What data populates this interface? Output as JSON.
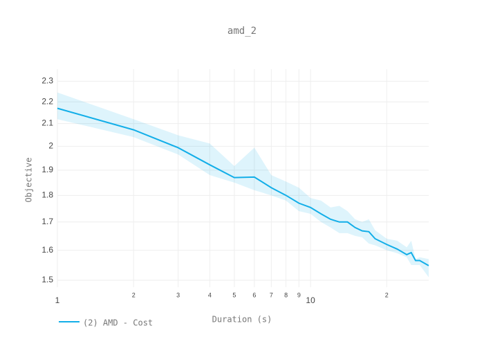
{
  "chart_data": {
    "type": "line",
    "title": "amd_2",
    "x_label": "Duration (s)",
    "y_label": "Objective",
    "x_log": true,
    "y_log": true,
    "grid": true,
    "legend": "bottom-left",
    "x": [
      1,
      2,
      3,
      4,
      5,
      6,
      7,
      8,
      9,
      10,
      11,
      12,
      13,
      14,
      15,
      16,
      17,
      18,
      20,
      22,
      24,
      25,
      26,
      27,
      29.3
    ],
    "series": [
      {
        "name": "(2) AMD - Cost",
        "color": "#12aee8",
        "band_color": "rgba(18,174,232,0.14)",
        "values": [
          2.17,
          2.072,
          1.994,
          1.922,
          1.87,
          1.872,
          1.83,
          1.8,
          1.77,
          1.754,
          1.73,
          1.71,
          1.7,
          1.7,
          1.68,
          1.668,
          1.665,
          1.64,
          1.62,
          1.604,
          1.585,
          1.592,
          1.565,
          1.565,
          1.548
        ],
        "upper": [
          2.245,
          2.12,
          2.048,
          2.012,
          1.917,
          1.994,
          1.88,
          1.854,
          1.83,
          1.79,
          1.78,
          1.754,
          1.76,
          1.74,
          1.71,
          1.7,
          1.71,
          1.67,
          1.64,
          1.633,
          1.61,
          1.633,
          1.57,
          1.576,
          1.57
        ],
        "lower": [
          2.12,
          2.04,
          1.965,
          1.88,
          1.85,
          1.82,
          1.8,
          1.78,
          1.74,
          1.73,
          1.7,
          1.68,
          1.66,
          1.66,
          1.65,
          1.645,
          1.623,
          1.617,
          1.6,
          1.59,
          1.576,
          1.55,
          1.55,
          1.55,
          1.51
        ]
      }
    ],
    "xlim": [
      1,
      29.3
    ],
    "ylim": [
      1.478,
      2.36
    ],
    "xticks": [
      1,
      2,
      3,
      4,
      5,
      6,
      7,
      8,
      9,
      10,
      {
        "value": 20,
        "label": "2"
      }
    ],
    "yticks": [
      1.5,
      1.6,
      1.7,
      1.8,
      1.9,
      2,
      2.1,
      2.2,
      2.3
    ]
  }
}
